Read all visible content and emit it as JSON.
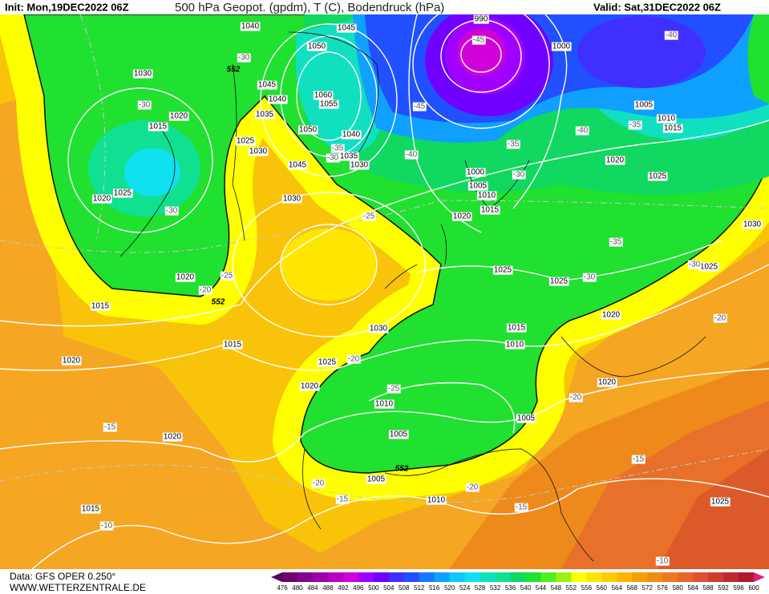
{
  "header": {
    "init": "Init: Mon,19DEC2022 06Z",
    "title": "500 hPa Geopot. (gpdm), T (C), Bodendruck (hPa)",
    "valid": "Valid: Sat,31DEC2022 06Z"
  },
  "footer": {
    "data": "Data: GFS OPER 0.250°",
    "site": "WWW.WETTERZENTRALE.DE"
  },
  "legend": {
    "ticks": [
      476,
      480,
      484,
      488,
      492,
      496,
      500,
      504,
      508,
      512,
      516,
      520,
      524,
      528,
      532,
      536,
      540,
      544,
      548,
      552,
      556,
      560,
      564,
      568,
      572,
      576,
      580,
      584,
      588,
      592,
      596,
      600
    ],
    "colors": [
      "#5a0060",
      "#6e0070",
      "#860090",
      "#9e00a8",
      "#b800c0",
      "#d000d8",
      "#a000ff",
      "#7000ff",
      "#4030ff",
      "#2050ff",
      "#1878ff",
      "#10a0ff",
      "#10c8ff",
      "#10e0f0",
      "#10e0c0",
      "#10e090",
      "#10d860",
      "#20e030",
      "#50f020",
      "#a0f010",
      "#ffff00",
      "#ffe600",
      "#ffcc00",
      "#ffb400",
      "#f5a000",
      "#f08c10",
      "#ec7820",
      "#e86428",
      "#e05030",
      "#d03c30",
      "#c02830",
      "#b01830",
      "#e0207a"
    ]
  },
  "pressure_labels": [
    "1040",
    "1045",
    "1050",
    "1030",
    "1045",
    "1040",
    "1060",
    "1055",
    "1020",
    "1035",
    "1015",
    "1050",
    "1040",
    "1025",
    "1030",
    "1035",
    "1030",
    "1045",
    "1000",
    "1005",
    "1010",
    "1025",
    "1020",
    "1030",
    "1015",
    "1020",
    "990",
    "1000",
    "1005",
    "1010",
    "1015",
    "1020",
    "1025",
    "1030",
    "1025",
    "1025",
    "1025",
    "1020",
    "1015",
    "1020",
    "1015",
    "1030",
    "1010",
    "1015",
    "1025",
    "1020",
    "1020",
    "1020",
    "1010",
    "1005",
    "1005",
    "1020",
    "1005",
    "1010",
    "1015",
    "1025"
  ],
  "temperature_labels": [
    "-30",
    "-45",
    "-40",
    "-30",
    "-45",
    "-40",
    "-35",
    "-35",
    "-30",
    "-40",
    "-35",
    "-30",
    "-30",
    "-25",
    "-35",
    "-30",
    "-25",
    "-20",
    "-30",
    "-20",
    "-20",
    "-25",
    "-20",
    "-15",
    "-15",
    "-20",
    "-15",
    "-20",
    "-15",
    "-10",
    "-10"
  ],
  "geopotential_labels": [
    "552",
    "552",
    "552"
  ]
}
